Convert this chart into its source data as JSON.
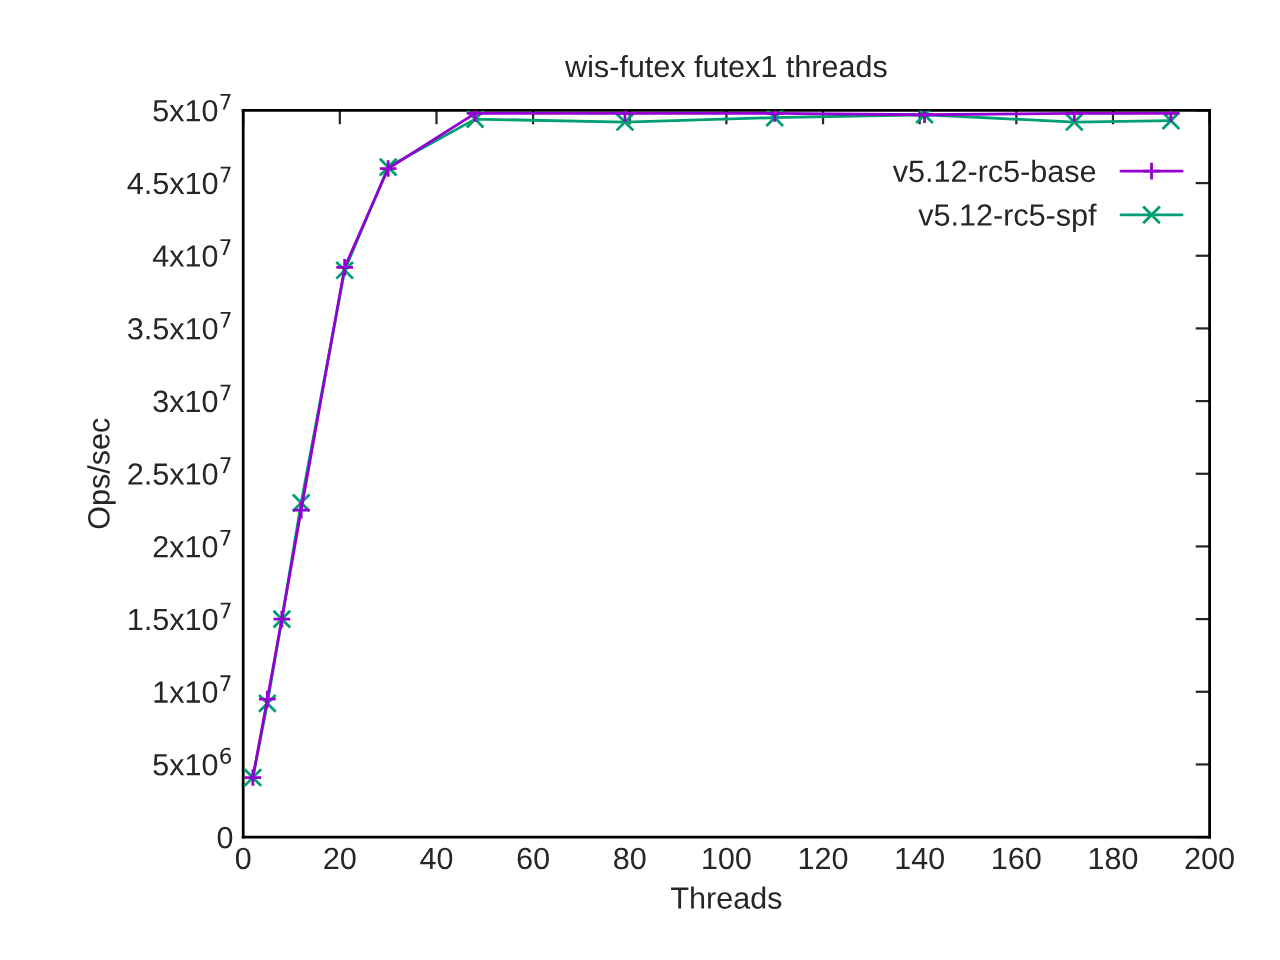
{
  "chart_data": {
    "type": "line",
    "title": "wis-futex futex1 threads",
    "xlabel": "Threads",
    "ylabel": "Ops/sec",
    "xlim": [
      0,
      200
    ],
    "xticks": [
      0,
      20,
      40,
      60,
      80,
      100,
      120,
      140,
      160,
      180,
      200
    ],
    "ylim": [
      0,
      50000000
    ],
    "yticks": [
      0,
      {
        "value": 5000000,
        "label": "5x10$^{6}$"
      },
      {
        "value": 10000000,
        "label": "1x10$^{7}$"
      },
      {
        "value": 15000000,
        "label": "1.5x10$^{7}$"
      },
      {
        "value": 20000000,
        "label": "2x10$^{7}$"
      },
      {
        "value": 25000000,
        "label": "2.5x10$^{7}$"
      },
      {
        "value": 30000000,
        "label": "3x10$^{7}$"
      },
      {
        "value": 35000000,
        "label": "3.5x10$^{7}$"
      },
      {
        "value": 40000000,
        "label": "4x10$^{7}$"
      },
      {
        "value": 45000000,
        "label": "4.5x10$^{7}$"
      },
      {
        "value": 50000000,
        "label": "5x10$^{7}$"
      }
    ],
    "x": [
      2,
      5,
      8,
      12,
      21,
      30,
      48,
      79,
      110,
      141,
      172,
      192
    ],
    "series": [
      {
        "name": "v5.12-rc5-base",
        "color": "#9400d3",
        "marker": "plus",
        "values": [
          4100000,
          9500000,
          15000000,
          22500000,
          39200000,
          46000000,
          49800000,
          49800000,
          49800000,
          49700000,
          49800000,
          49800000
        ]
      },
      {
        "name": "v5.12-rc5-spf",
        "color": "#009e73",
        "marker": "cross",
        "values": [
          4100000,
          9200000,
          15000000,
          23000000,
          39000000,
          46100000,
          49400000,
          49200000,
          49500000,
          49700000,
          49200000,
          49300000
        ]
      }
    ],
    "grid": false,
    "legend": "top right"
  }
}
